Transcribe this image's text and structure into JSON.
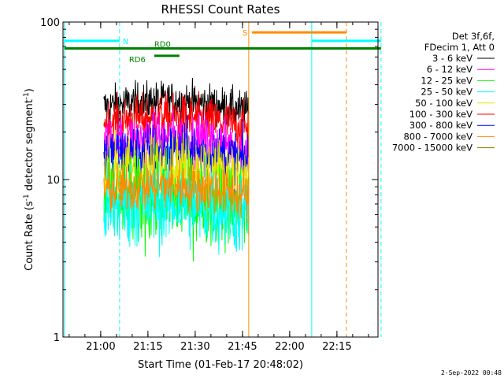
{
  "chart_data": {
    "type": "line",
    "title": "RHESSI Count Rates",
    "xlabel": "Start Time (01-Feb-17 20:48:02)",
    "ylabel_main": "Count Rate (s",
    "ylabel_sup1": "-1",
    "ylabel_mid": " detector segment",
    "ylabel_sup2": "-1",
    "ylabel_end": ")",
    "y_scale": "log",
    "ylim": [
      1,
      100
    ],
    "y_ticks": [
      "1",
      "10",
      "100"
    ],
    "x_ticks": [
      "21:00",
      "21:15",
      "21:30",
      "21:45",
      "22:00",
      "22:15"
    ],
    "footer": "2-Sep-2022 00:48",
    "legend": {
      "placement": "top-right",
      "header": [
        "Det 3f,6f,",
        "FDecim 1, Att 0"
      ],
      "entries": [
        {
          "label": "3 - 6 keV",
          "color": "#000000"
        },
        {
          "label": "6 - 12 keV",
          "color": "#ff00ff"
        },
        {
          "label": "12 - 25 keV",
          "color": "#00ff00"
        },
        {
          "label": "25 - 50 keV",
          "color": "#00ffff"
        },
        {
          "label": "50 - 100 keV",
          "color": "#e6e600"
        },
        {
          "label": "100 - 300 keV",
          "color": "#ff0000"
        },
        {
          "label": "300 - 800 keV",
          "color": "#0000ff"
        },
        {
          "label": "800 - 7000 keV",
          "color": "#ff8c00"
        },
        {
          "label": "7000 - 15000 keV",
          "color": "#8b7500"
        }
      ]
    },
    "series": [
      {
        "name": "3 - 6 keV",
        "color": "#000000",
        "x_range": [
          "21:01",
          "21:47"
        ],
        "mean": 29,
        "noise": 0.07
      },
      {
        "name": "100 - 300 keV",
        "color": "#ff0000",
        "x_range": [
          "21:01",
          "21:47"
        ],
        "mean": 23,
        "noise": 0.08
      },
      {
        "name": "6 - 12 keV",
        "color": "#ff00ff",
        "x_range": [
          "21:01",
          "21:47"
        ],
        "mean": 17,
        "noise": 0.09
      },
      {
        "name": "300 - 800 keV",
        "color": "#0000ff",
        "x_range": [
          "21:01",
          "21:47"
        ],
        "mean": 14,
        "noise": 0.1
      },
      {
        "name": "50 - 100 keV",
        "color": "#e6e600",
        "x_range": [
          "21:01",
          "21:47"
        ],
        "mean": 11,
        "noise": 0.12
      },
      {
        "name": "12 - 25 keV",
        "color": "#00ff00",
        "x_range": [
          "21:01",
          "21:47"
        ],
        "mean": 7,
        "noise": 0.16
      },
      {
        "name": "25 - 50 keV",
        "color": "#00ffff",
        "x_range": [
          "21:01",
          "21:47"
        ],
        "mean": 6.5,
        "noise": 0.15
      },
      {
        "name": "800 - 7000 keV",
        "color": "#ff8c00",
        "x_range": [
          "21:01",
          "21:47"
        ],
        "mean": 8.5,
        "noise": 0.09
      }
    ],
    "vertical_lines": [
      {
        "x": "20:48:30",
        "color": "#00ffff",
        "style": "solid"
      },
      {
        "x": "21:06",
        "color": "#00ffff",
        "style": "dashed"
      },
      {
        "x": "21:47",
        "color": "#ff8c00",
        "style": "solid"
      },
      {
        "x": "22:07",
        "color": "#00ffff",
        "style": "solid"
      },
      {
        "x": "22:18",
        "color": "#ff8c00",
        "style": "dashed"
      },
      {
        "x": "22:29",
        "color": "#00ffff",
        "style": "dashed"
      }
    ],
    "flag_bars": [
      {
        "label": "N",
        "color": "#00ffff",
        "segments": [
          [
            "20:48:30",
            "21:06"
          ],
          [
            "22:07",
            "22:29"
          ]
        ],
        "level": 76,
        "label_at": "21:07"
      },
      {
        "label": "S",
        "color": "#ff8c00",
        "segments": [
          [
            "21:48",
            "22:18"
          ]
        ],
        "level": 86,
        "label_at": "21:45"
      },
      {
        "label": "RD0",
        "color": "#008000",
        "segments": [
          [
            "20:48:30",
            "22:29"
          ]
        ],
        "level": 68,
        "label_at": "21:17"
      },
      {
        "label": "RD6",
        "color": "#008000",
        "segments": [
          [
            "21:17",
            "21:25"
          ]
        ],
        "level": 61,
        "label_at": "21:09"
      }
    ]
  }
}
